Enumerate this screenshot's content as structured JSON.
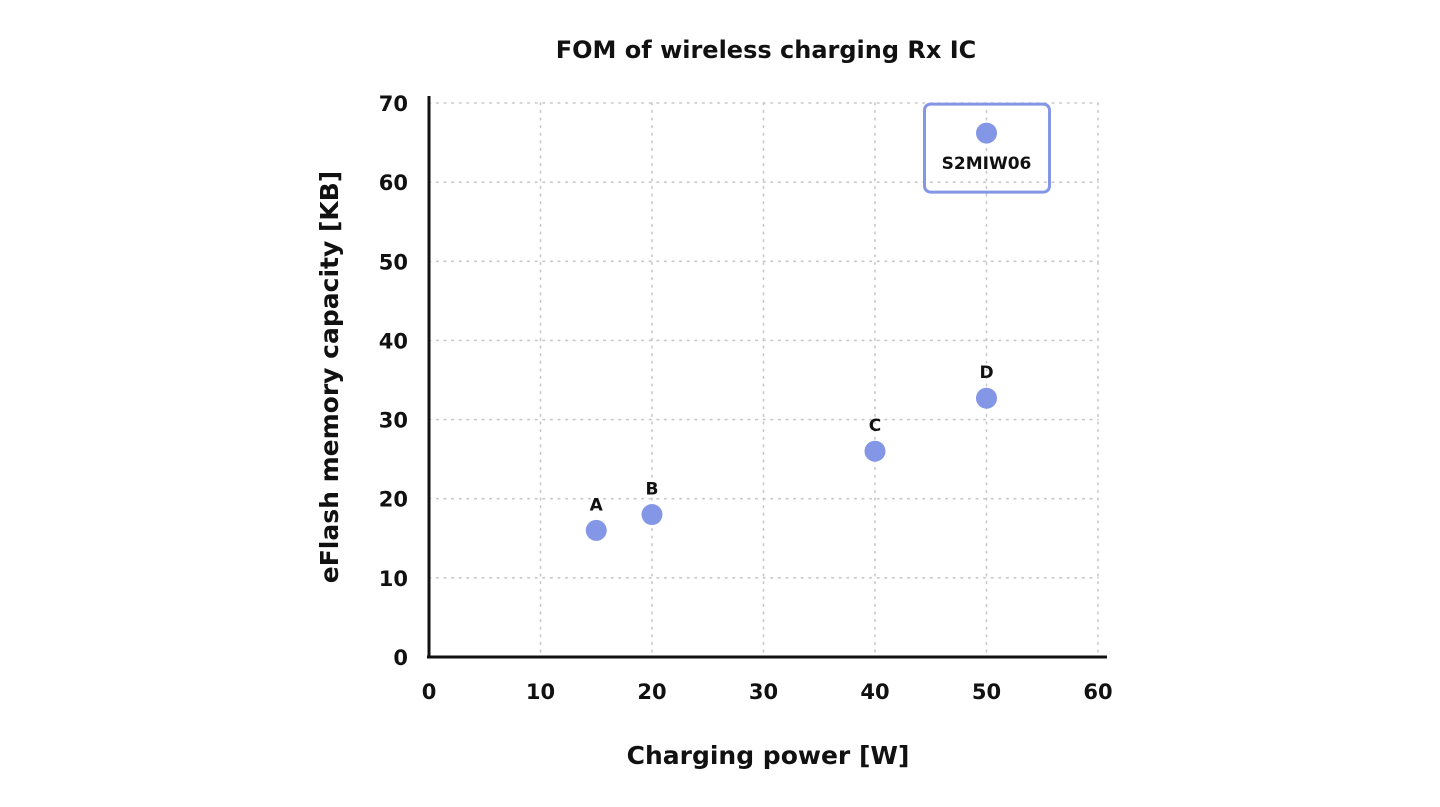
{
  "chart_data": {
    "type": "scatter",
    "title": "FOM of wireless charging Rx IC",
    "xlabel": "Charging power [W]",
    "ylabel": "eFlash memory capacity [KB]",
    "xlim": [
      0,
      60
    ],
    "ylim": [
      0,
      70
    ],
    "xticks": [
      0,
      10,
      20,
      30,
      40,
      50,
      60
    ],
    "yticks": [
      0,
      10,
      20,
      30,
      40,
      50,
      60,
      70
    ],
    "grid": true,
    "points": [
      {
        "label": "A",
        "x": 15,
        "y": 16,
        "highlight": false
      },
      {
        "label": "B",
        "x": 20,
        "y": 18,
        "highlight": false
      },
      {
        "label": "C",
        "x": 40,
        "y": 26,
        "highlight": false
      },
      {
        "label": "D",
        "x": 50,
        "y": 32.7,
        "highlight": false
      },
      {
        "label": "S2MIW06",
        "x": 50,
        "y": 66.2,
        "highlight": true
      }
    ],
    "colors": {
      "point": "#8496e6",
      "axis": "#111111",
      "grid": "#c8c8c8"
    }
  }
}
